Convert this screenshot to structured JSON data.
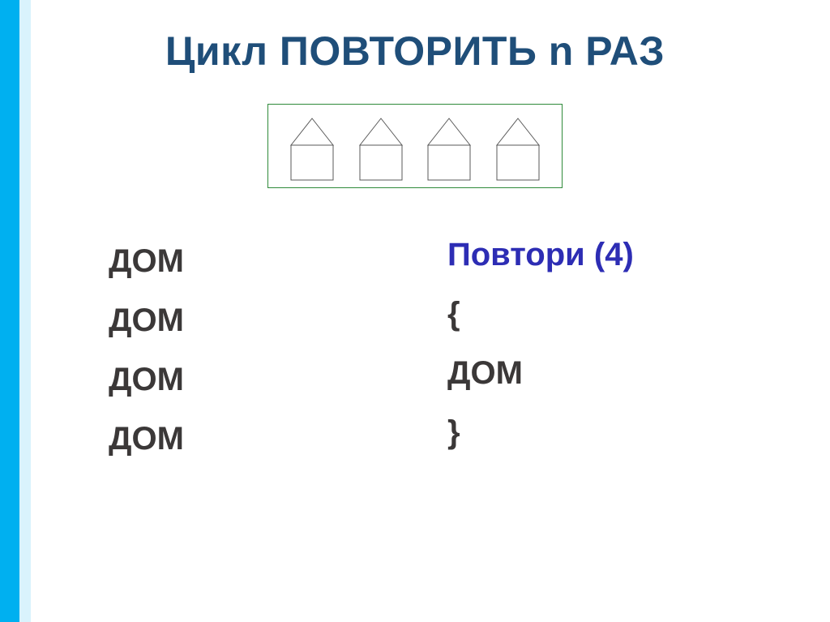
{
  "colors": {
    "accent1": "#00b0f0",
    "accent2": "#d9f3fd",
    "title": "#1f4e79",
    "text_dark": "#3b3838",
    "text_emph": "#2d2db4",
    "box_border": "#2f8a3a",
    "house_stroke": "#595959",
    "white": "#ffffff"
  },
  "title": "Цикл ПОВТОРИТЬ n РАЗ",
  "houses": {
    "count": 4,
    "box_border_color": "#2f8a3a",
    "house": {
      "width": 54,
      "height": 78,
      "body_h": 44,
      "stroke": "#595959",
      "stroke_width": 1
    }
  },
  "left_column": {
    "items": [
      "ДОМ",
      "ДОМ",
      "ДОМ",
      "ДОМ"
    ],
    "color": "#3b3838"
  },
  "right_column": {
    "line1": {
      "text": "Повтори (4)",
      "color": "#2d2db4"
    },
    "line2": {
      "text": "{",
      "color": "#3b3838"
    },
    "line3": {
      "text": "ДОМ",
      "color": "#3b3838"
    },
    "line4": {
      "text": "}",
      "color": "#3b3838"
    }
  }
}
